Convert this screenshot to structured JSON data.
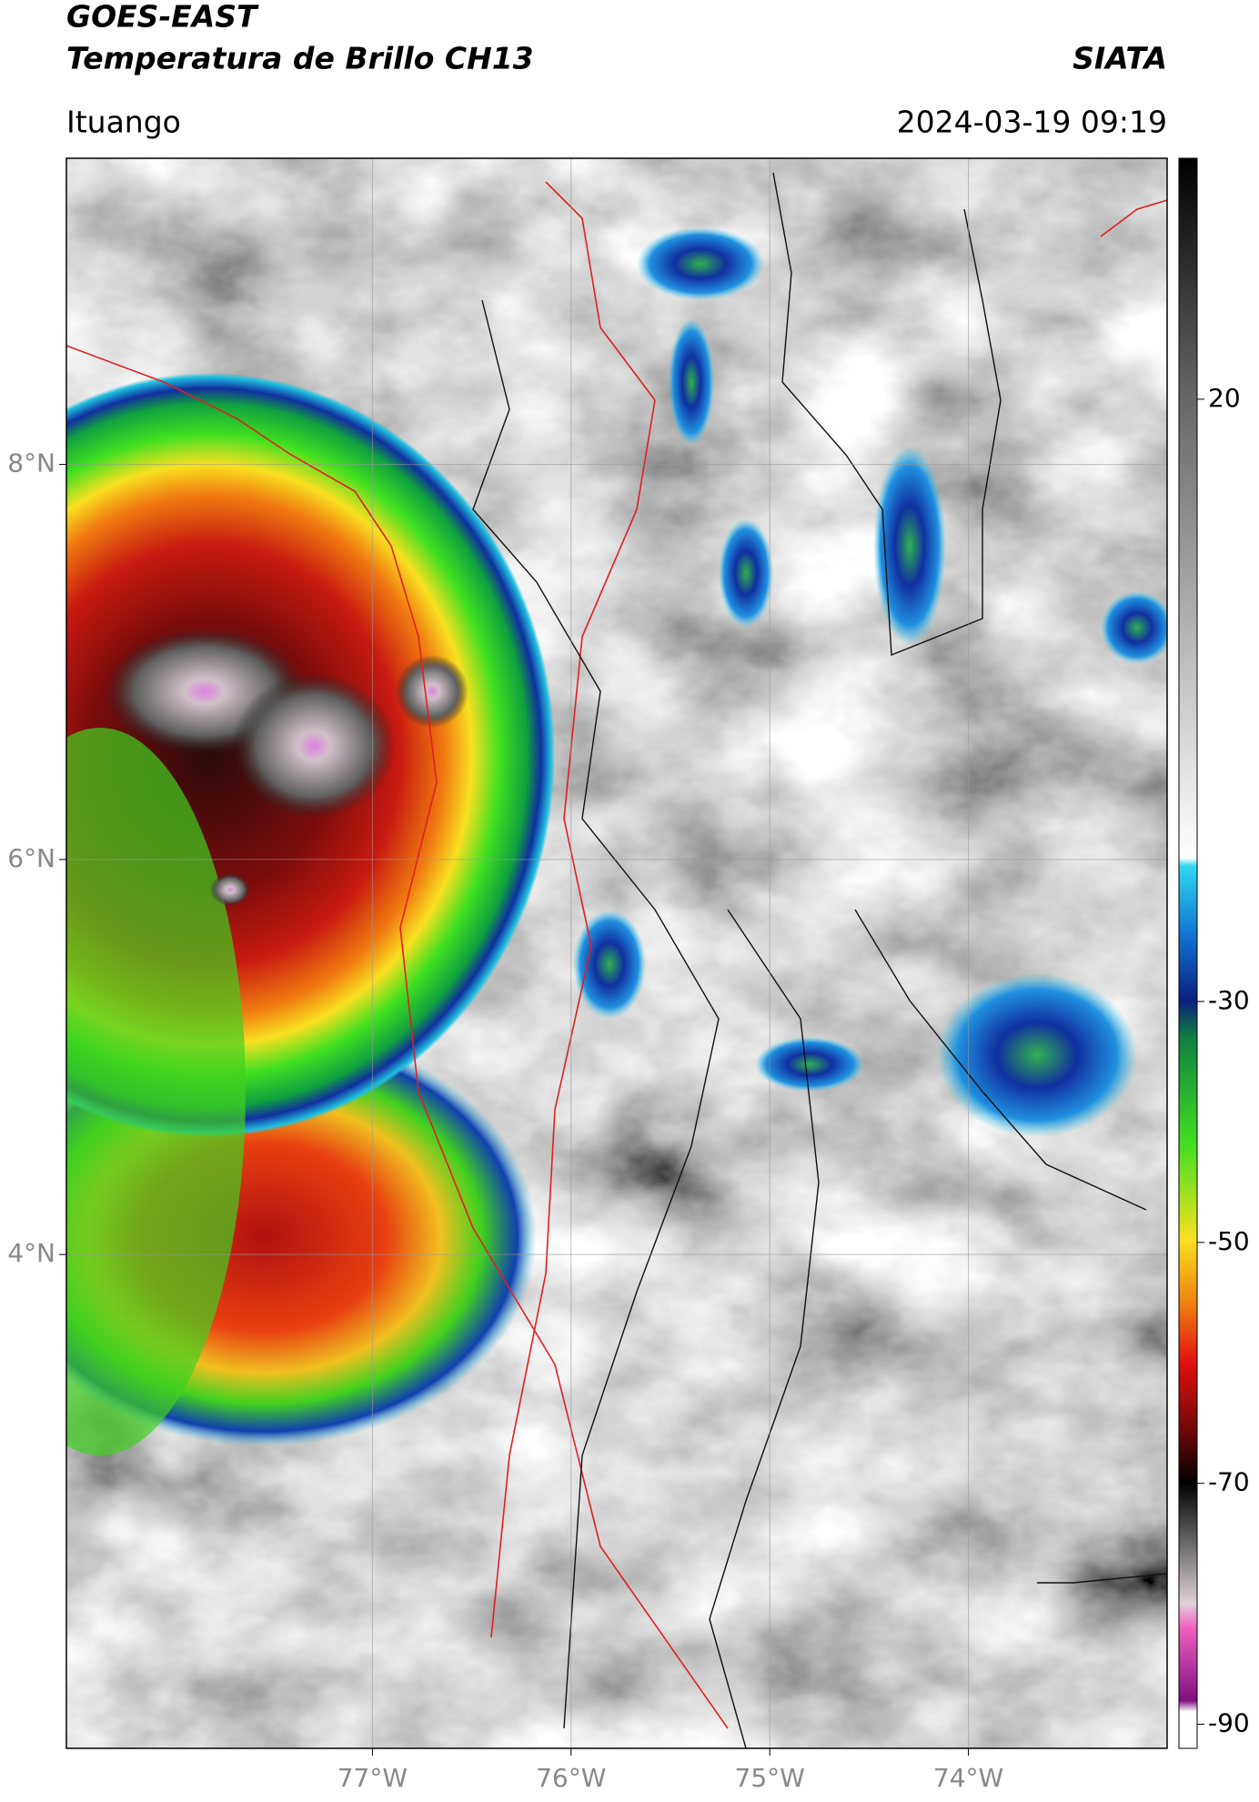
{
  "header": {
    "title": "GOES-EAST",
    "subtitle": "Temperatura de Brillo CH13",
    "brand": "SIATA",
    "location": "Ituango",
    "datetime": "2024-03-19 09:19"
  },
  "map": {
    "xlim": [
      -78.54,
      -73.0
    ],
    "ylim": [
      1.5,
      9.55
    ],
    "xticks": [
      {
        "value": -77,
        "label": "77°W"
      },
      {
        "value": -76,
        "label": "76°W"
      },
      {
        "value": -75,
        "label": "75°W"
      },
      {
        "value": -74,
        "label": "74°W"
      }
    ],
    "yticks": [
      {
        "value": 8,
        "label": "8°N"
      },
      {
        "value": 6,
        "label": "6°N"
      },
      {
        "value": 4,
        "label": "4°N"
      }
    ],
    "grid": true
  },
  "colorbar": {
    "lim": [
      -92,
      40
    ],
    "ticks": [
      20,
      -30,
      -50,
      -70,
      -90
    ]
  }
}
